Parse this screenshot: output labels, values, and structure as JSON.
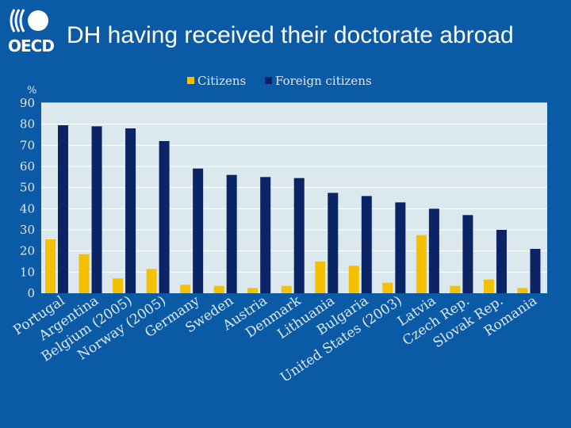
{
  "header": {
    "logo_text": "OECD",
    "title": "DH having received their doctorate abroad"
  },
  "chart_data": {
    "type": "bar",
    "ylabel": "%",
    "ylim": [
      0,
      90
    ],
    "yticks": [
      0,
      10,
      20,
      30,
      40,
      50,
      60,
      70,
      80,
      90
    ],
    "grid": true,
    "legend_position": "top-center",
    "categories": [
      "Portugal",
      "Argentina",
      "Belgium (2005)",
      "Norway (2005)",
      "Germany",
      "Sweden",
      "Austria",
      "Denmark",
      "Lithuania",
      "Bulgaria",
      "United States (2003)",
      "Latvia",
      "Czech Rep.",
      "Slovak Rep.",
      "Romania"
    ],
    "series": [
      {
        "name": "Citizens",
        "color": "#f5c000",
        "values": [
          25.5,
          18.5,
          7,
          11.5,
          4,
          3.5,
          2.5,
          3.5,
          15,
          13,
          5,
          27.5,
          3.5,
          6.5,
          2.5
        ]
      },
      {
        "name": "Foreign citizens",
        "color": "#0b2466",
        "values": [
          79.5,
          79,
          78,
          72,
          59,
          56,
          55,
          54.5,
          47.5,
          46,
          43,
          40,
          37,
          30,
          21
        ]
      }
    ],
    "plot_background": "#dbe9ef"
  }
}
